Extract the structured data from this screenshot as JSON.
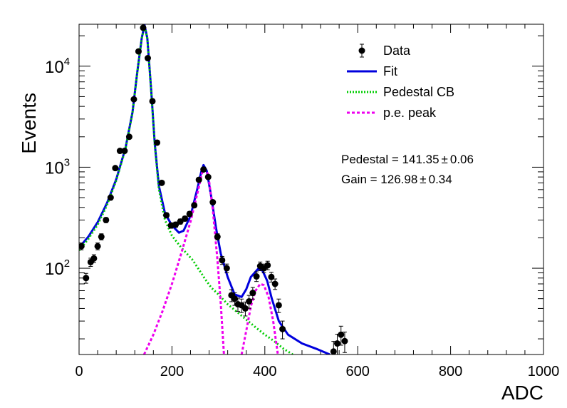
{
  "chart_data": {
    "type": "scatter",
    "xlabel": "ADC",
    "ylabel": "Events",
    "xlim": [
      0,
      1000
    ],
    "ylim": [
      14,
      26000
    ],
    "yscale": "log",
    "x_ticks": [
      0,
      200,
      400,
      600,
      800,
      1000
    ],
    "y_ticks": [
      {
        "value": 100,
        "base": "10",
        "exp": "2"
      },
      {
        "value": 1000,
        "base": "10",
        "exp": "3"
      },
      {
        "value": 10000,
        "base": "10",
        "exp": "4"
      }
    ],
    "legend": {
      "placement": "top-right",
      "entries": [
        {
          "label": "Data",
          "style": "marker",
          "color": "#000000"
        },
        {
          "label": "Fit",
          "style": "solid",
          "color": "#0000dd"
        },
        {
          "label": "Pedestal CB",
          "style": "dotted",
          "color": "#00cc00"
        },
        {
          "label": "p.e. peak",
          "style": "dashed",
          "color": "#ee00ee"
        }
      ]
    },
    "annotations": {
      "pedestal": "Pedestal = 141.35",
      "pedestal_err": "0.06",
      "gain": "Gain = 126.98",
      "gain_err": "0.34"
    },
    "series": [
      {
        "name": "Data",
        "color": "#000000",
        "points": [
          {
            "x": 5,
            "y": 165
          },
          {
            "x": 15,
            "y": 80
          },
          {
            "x": 25,
            "y": 115
          },
          {
            "x": 32,
            "y": 125
          },
          {
            "x": 40,
            "y": 165
          },
          {
            "x": 48,
            "y": 205
          },
          {
            "x": 58,
            "y": 300
          },
          {
            "x": 68,
            "y": 500
          },
          {
            "x": 78,
            "y": 980
          },
          {
            "x": 88,
            "y": 1450
          },
          {
            "x": 98,
            "y": 1450
          },
          {
            "x": 108,
            "y": 2000
          },
          {
            "x": 118,
            "y": 4700
          },
          {
            "x": 128,
            "y": 14000
          },
          {
            "x": 138,
            "y": 24000
          },
          {
            "x": 148,
            "y": 12000
          },
          {
            "x": 158,
            "y": 4500
          },
          {
            "x": 168,
            "y": 1750
          },
          {
            "x": 178,
            "y": 700
          },
          {
            "x": 188,
            "y": 335
          },
          {
            "x": 198,
            "y": 265
          },
          {
            "x": 208,
            "y": 270
          },
          {
            "x": 218,
            "y": 290
          },
          {
            "x": 228,
            "y": 310
          },
          {
            "x": 238,
            "y": 345
          },
          {
            "x": 248,
            "y": 420
          },
          {
            "x": 258,
            "y": 750
          },
          {
            "x": 268,
            "y": 950
          },
          {
            "x": 278,
            "y": 800
          },
          {
            "x": 288,
            "y": 450
          },
          {
            "x": 298,
            "y": 205
          },
          {
            "x": 308,
            "y": 120
          },
          {
            "x": 318,
            "y": 100
          },
          {
            "x": 328,
            "y": 54
          },
          {
            "x": 335,
            "y": 50
          },
          {
            "x": 342,
            "y": 44
          },
          {
            "x": 350,
            "y": 43
          },
          {
            "x": 358,
            "y": 40
          },
          {
            "x": 366,
            "y": 47
          },
          {
            "x": 374,
            "y": 57
          },
          {
            "x": 382,
            "y": 83
          },
          {
            "x": 390,
            "y": 105
          },
          {
            "x": 398,
            "y": 100
          },
          {
            "x": 406,
            "y": 107
          },
          {
            "x": 414,
            "y": 82
          },
          {
            "x": 422,
            "y": 70
          },
          {
            "x": 430,
            "y": 43
          },
          {
            "x": 438,
            "y": 25
          },
          {
            "x": 548,
            "y": 15
          },
          {
            "x": 556,
            "y": 18
          },
          {
            "x": 564,
            "y": 22
          },
          {
            "x": 572,
            "y": 19
          }
        ]
      },
      {
        "name": "Fit",
        "color": "#0000dd",
        "points": [
          {
            "x": 0,
            "y": 160
          },
          {
            "x": 20,
            "y": 205
          },
          {
            "x": 40,
            "y": 285
          },
          {
            "x": 60,
            "y": 440
          },
          {
            "x": 80,
            "y": 760
          },
          {
            "x": 100,
            "y": 1550
          },
          {
            "x": 115,
            "y": 3500
          },
          {
            "x": 125,
            "y": 8500
          },
          {
            "x": 135,
            "y": 19000
          },
          {
            "x": 141,
            "y": 25500
          },
          {
            "x": 147,
            "y": 19000
          },
          {
            "x": 155,
            "y": 6000
          },
          {
            "x": 163,
            "y": 1700
          },
          {
            "x": 172,
            "y": 650
          },
          {
            "x": 185,
            "y": 350
          },
          {
            "x": 200,
            "y": 265
          },
          {
            "x": 215,
            "y": 225
          },
          {
            "x": 225,
            "y": 235
          },
          {
            "x": 240,
            "y": 330
          },
          {
            "x": 255,
            "y": 620
          },
          {
            "x": 263,
            "y": 900
          },
          {
            "x": 268,
            "y": 1050
          },
          {
            "x": 275,
            "y": 920
          },
          {
            "x": 285,
            "y": 500
          },
          {
            "x": 295,
            "y": 250
          },
          {
            "x": 305,
            "y": 140
          },
          {
            "x": 320,
            "y": 82
          },
          {
            "x": 335,
            "y": 55
          },
          {
            "x": 350,
            "y": 52
          },
          {
            "x": 360,
            "y": 62
          },
          {
            "x": 370,
            "y": 82
          },
          {
            "x": 385,
            "y": 98
          },
          {
            "x": 395,
            "y": 95
          },
          {
            "x": 405,
            "y": 75
          },
          {
            "x": 415,
            "y": 50
          },
          {
            "x": 430,
            "y": 30
          },
          {
            "x": 450,
            "y": 22
          },
          {
            "x": 480,
            "y": 18
          },
          {
            "x": 510,
            "y": 16
          },
          {
            "x": 540,
            "y": 14
          }
        ]
      },
      {
        "name": "Pedestal CB",
        "color": "#00cc00",
        "points": [
          {
            "x": 0,
            "y": 150
          },
          {
            "x": 20,
            "y": 195
          },
          {
            "x": 40,
            "y": 270
          },
          {
            "x": 60,
            "y": 420
          },
          {
            "x": 80,
            "y": 740
          },
          {
            "x": 100,
            "y": 1520
          },
          {
            "x": 115,
            "y": 3450
          },
          {
            "x": 125,
            "y": 8400
          },
          {
            "x": 135,
            "y": 18800
          },
          {
            "x": 141,
            "y": 25300
          },
          {
            "x": 147,
            "y": 18800
          },
          {
            "x": 155,
            "y": 5900
          },
          {
            "x": 163,
            "y": 1650
          },
          {
            "x": 172,
            "y": 600
          },
          {
            "x": 185,
            "y": 300
          },
          {
            "x": 200,
            "y": 210
          },
          {
            "x": 220,
            "y": 160
          },
          {
            "x": 245,
            "y": 120
          },
          {
            "x": 270,
            "y": 80
          },
          {
            "x": 285,
            "y": 64
          },
          {
            "x": 300,
            "y": 55
          },
          {
            "x": 320,
            "y": 44
          },
          {
            "x": 340,
            "y": 37
          },
          {
            "x": 360,
            "y": 31
          },
          {
            "x": 380,
            "y": 26
          },
          {
            "x": 400,
            "y": 22
          },
          {
            "x": 420,
            "y": 19
          },
          {
            "x": 440,
            "y": 16
          },
          {
            "x": 460,
            "y": 14
          }
        ]
      },
      {
        "name": "p.e. peak",
        "color": "#ee00ee",
        "points": [
          {
            "x": 140,
            "y": 14
          },
          {
            "x": 160,
            "y": 22
          },
          {
            "x": 180,
            "y": 38
          },
          {
            "x": 200,
            "y": 70
          },
          {
            "x": 220,
            "y": 140
          },
          {
            "x": 240,
            "y": 290
          },
          {
            "x": 255,
            "y": 560
          },
          {
            "x": 265,
            "y": 880
          },
          {
            "x": 270,
            "y": 960
          },
          {
            "x": 278,
            "y": 850
          },
          {
            "x": 288,
            "y": 380
          },
          {
            "x": 298,
            "y": 120
          },
          {
            "x": 305,
            "y": 45
          },
          {
            "x": 312,
            "y": 14
          },
          {
            "x": null,
            "y": null
          },
          {
            "x": 350,
            "y": 14
          },
          {
            "x": 360,
            "y": 24
          },
          {
            "x": 370,
            "y": 42
          },
          {
            "x": 380,
            "y": 60
          },
          {
            "x": 390,
            "y": 70
          },
          {
            "x": 398,
            "y": 68
          },
          {
            "x": 408,
            "y": 52
          },
          {
            "x": 418,
            "y": 30
          },
          {
            "x": 428,
            "y": 14
          }
        ]
      }
    ]
  }
}
